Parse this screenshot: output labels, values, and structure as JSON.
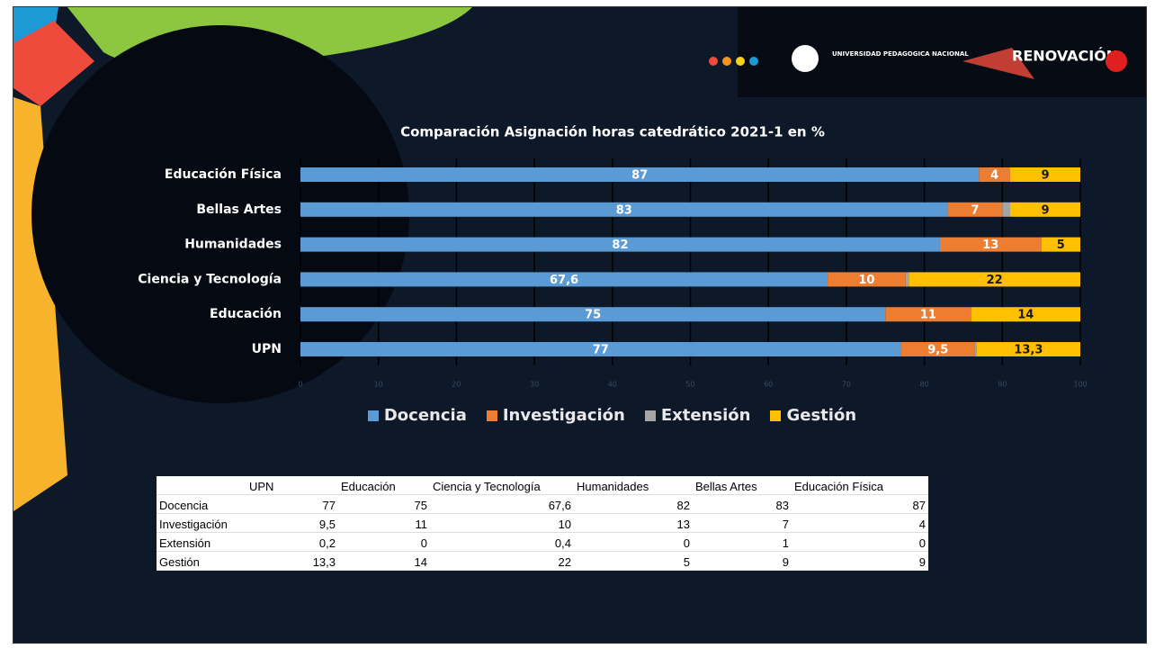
{
  "branding": {
    "university": "UNIVERSIDAD PEDAGOGICA NACIONAL",
    "campaign": "RENOVACIÓN"
  },
  "chart_data": {
    "type": "stacked-barh",
    "title": "Comparación Asignación horas catedrático 2021-1 en %",
    "categories": [
      "Educación Física",
      "Bellas Artes",
      "Humanidades",
      "Ciencia y Tecnología",
      "Educación",
      "UPN"
    ],
    "series": [
      {
        "name": "Docencia",
        "color": "#5b9bd5",
        "label_color": "#ffffff",
        "values": [
          87,
          83,
          82,
          67.6,
          75,
          77
        ],
        "value_labels": [
          "87",
          "83",
          "82",
          "67,6",
          "75",
          "77"
        ]
      },
      {
        "name": "Investigación",
        "color": "#ed7d31",
        "label_color": "#ffffff",
        "values": [
          4,
          7,
          13,
          10,
          11,
          9.5
        ],
        "value_labels": [
          "4",
          "7",
          "13",
          "10",
          "11",
          "9,5"
        ]
      },
      {
        "name": "Extensión",
        "color": "#a5a5a5",
        "values": [
          0,
          1,
          0,
          0.4,
          0,
          0.2
        ]
      },
      {
        "name": "Gestión",
        "color": "#ffc000",
        "label_color": "#1a1a1a",
        "values": [
          9,
          9,
          5,
          22,
          14,
          13.3
        ],
        "value_labels": [
          "9",
          "9",
          "5",
          "22",
          "14",
          "13,3"
        ]
      }
    ],
    "xlim": [
      0,
      100
    ],
    "xticks": [
      0,
      10,
      20,
      30,
      40,
      50,
      60,
      70,
      80,
      90,
      100
    ],
    "grid": true
  },
  "table": {
    "columns": [
      "UPN",
      "Educación",
      "Ciencia y Tecnología",
      "Humanidades",
      "Bellas Artes",
      "Educación Física"
    ],
    "rows": [
      {
        "label": "Docencia",
        "cells": [
          "77",
          "75",
          "67,6",
          "82",
          "83",
          "87"
        ]
      },
      {
        "label": "Investigación",
        "cells": [
          "9,5",
          "11",
          "10",
          "13",
          "7",
          "4"
        ]
      },
      {
        "label": "Extensión",
        "cells": [
          "0,2",
          "0",
          "0,4",
          "0",
          "1",
          "0"
        ]
      },
      {
        "label": "Gestión",
        "cells": [
          "13,3",
          "14",
          "22",
          "5",
          "9",
          "9"
        ]
      }
    ]
  }
}
